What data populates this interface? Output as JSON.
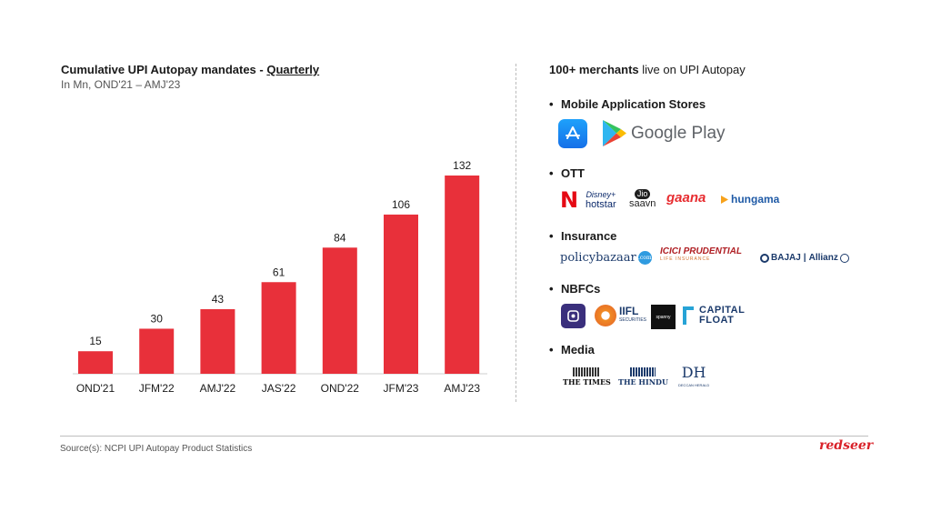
{
  "chart_data": {
    "type": "bar",
    "title": "Cumulative UPI Autopay mandates - Quarterly",
    "subtitle": "In Mn, OND'21 – AMJ'23",
    "categories": [
      "OND'21",
      "JFM'22",
      "AMJ'22",
      "JAS'22",
      "OND'22",
      "JFM'23",
      "AMJ'23"
    ],
    "values": [
      15,
      30,
      43,
      61,
      84,
      106,
      132
    ],
    "bar_color": "#e8303a",
    "ylim": [
      0,
      140
    ],
    "grid": false,
    "data_labels": true
  },
  "title_parts": {
    "main": "Cumulative UPI Autopay mandates - ",
    "underlined": "Quarterly"
  },
  "right_panel": {
    "title_bold": "100+ merchants",
    "title_rest": " live on UPI Autopay",
    "categories": [
      "Mobile Application Stores",
      "OTT",
      "Insurance",
      "NBFCs",
      "Media"
    ]
  },
  "logos": {
    "google_play": "Google Play",
    "netflix": "N",
    "disney": "Disney+",
    "hotstar": "hotstar",
    "jio": "Jio",
    "saavn": "saavn",
    "gaana": "gaana",
    "hungama": "hungama",
    "policybazaar_a": "policy",
    "policybazaar_b": "bazaar",
    "policybazaar_c": ".com",
    "icici_a": "ICICI",
    "icici_b": "PRUDENTIAL",
    "icici_sub": "LIFE INSURANCE",
    "bajaj": "BAJAJ",
    "allianz": "Allianz",
    "iifl": "IIFL",
    "iifl_sub": "SECURITIES",
    "spanny": "spanny",
    "capital": "CAPITAL",
    "float": "FLOAT",
    "times": "THE TIMES",
    "hindu": "THE HINDU",
    "dh": "DH",
    "dh_sub": "DECCAN HERALD"
  },
  "colors": {
    "accent": "#e8303a",
    "brand": "#d9222a",
    "netflix": "#e50914",
    "gaana": "#e72c30",
    "dark_blue": "#1b3a6b"
  },
  "footer": {
    "source": "Source(s):  NCPI UPI Autopay Product Statistics",
    "brand": "redseer"
  }
}
